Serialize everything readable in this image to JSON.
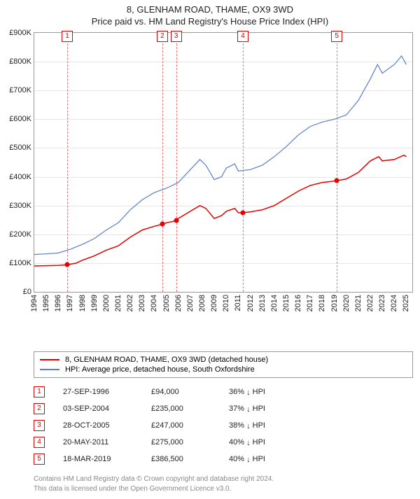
{
  "title_line1": "8, GLENHAM ROAD, THAME, OX9 3WD",
  "title_line2": "Price paid vs. HM Land Registry's House Price Index (HPI)",
  "chart": {
    "type": "line",
    "background_color": "#ffffff",
    "grid_color": "#e6e6e6",
    "border_color": "#999999",
    "xlim": [
      1994,
      2025.5
    ],
    "ylim": [
      0,
      900000
    ],
    "ytick_step": 100000,
    "ytick_prefix": "£",
    "ytick_suffix": "K",
    "xticks": [
      1994,
      1995,
      1996,
      1997,
      1998,
      1999,
      2000,
      2001,
      2002,
      2003,
      2004,
      2005,
      2006,
      2007,
      2008,
      2009,
      2010,
      2011,
      2012,
      2013,
      2014,
      2015,
      2016,
      2017,
      2018,
      2019,
      2020,
      2021,
      2022,
      2023,
      2024,
      2025
    ],
    "series": {
      "property": {
        "label": "8, GLENHAM ROAD, THAME, OX9 3WD (detached house)",
        "color": "#e60000",
        "line_width": 1.5,
        "data": [
          [
            1994,
            90000
          ],
          [
            1995,
            91000
          ],
          [
            1996,
            92000
          ],
          [
            1996.74,
            94000
          ],
          [
            1997.5,
            100000
          ],
          [
            1998,
            110000
          ],
          [
            1999,
            125000
          ],
          [
            2000,
            145000
          ],
          [
            2001,
            160000
          ],
          [
            2002,
            190000
          ],
          [
            2003,
            215000
          ],
          [
            2004,
            228000
          ],
          [
            2004.67,
            235000
          ],
          [
            2005,
            240000
          ],
          [
            2005.82,
            247000
          ],
          [
            2006,
            255000
          ],
          [
            2007,
            280000
          ],
          [
            2007.8,
            300000
          ],
          [
            2008.3,
            290000
          ],
          [
            2009,
            255000
          ],
          [
            2009.6,
            265000
          ],
          [
            2010,
            280000
          ],
          [
            2010.7,
            290000
          ],
          [
            2011,
            275000
          ],
          [
            2011.38,
            275000
          ],
          [
            2012,
            278000
          ],
          [
            2013,
            285000
          ],
          [
            2014,
            300000
          ],
          [
            2015,
            325000
          ],
          [
            2016,
            350000
          ],
          [
            2017,
            370000
          ],
          [
            2018,
            380000
          ],
          [
            2019,
            385000
          ],
          [
            2019.21,
            386500
          ],
          [
            2020,
            392000
          ],
          [
            2021,
            415000
          ],
          [
            2022,
            455000
          ],
          [
            2022.7,
            470000
          ],
          [
            2023,
            455000
          ],
          [
            2024,
            460000
          ],
          [
            2024.8,
            475000
          ],
          [
            2025,
            470000
          ]
        ]
      },
      "hpi": {
        "label": "HPI: Average price, detached house, South Oxfordshire",
        "color": "#5b7fc7",
        "line_width": 1.2,
        "data": [
          [
            1994,
            130000
          ],
          [
            1995,
            132000
          ],
          [
            1996,
            135000
          ],
          [
            1997,
            148000
          ],
          [
            1998,
            165000
          ],
          [
            1999,
            185000
          ],
          [
            2000,
            215000
          ],
          [
            2001,
            240000
          ],
          [
            2002,
            285000
          ],
          [
            2003,
            320000
          ],
          [
            2004,
            345000
          ],
          [
            2005,
            360000
          ],
          [
            2006,
            380000
          ],
          [
            2007,
            425000
          ],
          [
            2007.8,
            460000
          ],
          [
            2008.3,
            440000
          ],
          [
            2009,
            390000
          ],
          [
            2009.6,
            400000
          ],
          [
            2010,
            430000
          ],
          [
            2010.7,
            445000
          ],
          [
            2011,
            420000
          ],
          [
            2012,
            425000
          ],
          [
            2013,
            440000
          ],
          [
            2014,
            470000
          ],
          [
            2015,
            505000
          ],
          [
            2016,
            545000
          ],
          [
            2017,
            575000
          ],
          [
            2018,
            590000
          ],
          [
            2019,
            600000
          ],
          [
            2020,
            615000
          ],
          [
            2021,
            665000
          ],
          [
            2022,
            740000
          ],
          [
            2022.6,
            790000
          ],
          [
            2023,
            760000
          ],
          [
            2024,
            790000
          ],
          [
            2024.6,
            820000
          ],
          [
            2025,
            790000
          ]
        ]
      }
    },
    "marker_style": {
      "line_color": "#e60000",
      "line_dash": "3,3",
      "box_border": "#e60000",
      "box_text_color": "#e60000",
      "dot_color": "#e60000",
      "dot_radius": 3.5
    }
  },
  "sales": [
    {
      "n": "1",
      "x": 1996.74,
      "price_val": 94000,
      "date": "27-SEP-1996",
      "price": "£94,000",
      "pct": "36% ↓ HPI"
    },
    {
      "n": "2",
      "x": 2004.67,
      "price_val": 235000,
      "date": "03-SEP-2004",
      "price": "£235,000",
      "pct": "37% ↓ HPI"
    },
    {
      "n": "3",
      "x": 2005.82,
      "price_val": 247000,
      "date": "28-OCT-2005",
      "price": "£247,000",
      "pct": "38% ↓ HPI"
    },
    {
      "n": "4",
      "x": 2011.38,
      "price_val": 275000,
      "date": "20-MAY-2011",
      "price": "£275,000",
      "pct": "40% ↓ HPI"
    },
    {
      "n": "5",
      "x": 2019.21,
      "price_val": 386500,
      "date": "18-MAR-2019",
      "price": "£386,500",
      "pct": "40% ↓ HPI"
    }
  ],
  "legend_header": "",
  "footer_line1": "Contains HM Land Registry data © Crown copyright and database right 2024.",
  "footer_line2": "This data is licensed under the Open Government Licence v3.0.",
  "label_fontsize": 11,
  "title_fontsize": 13
}
